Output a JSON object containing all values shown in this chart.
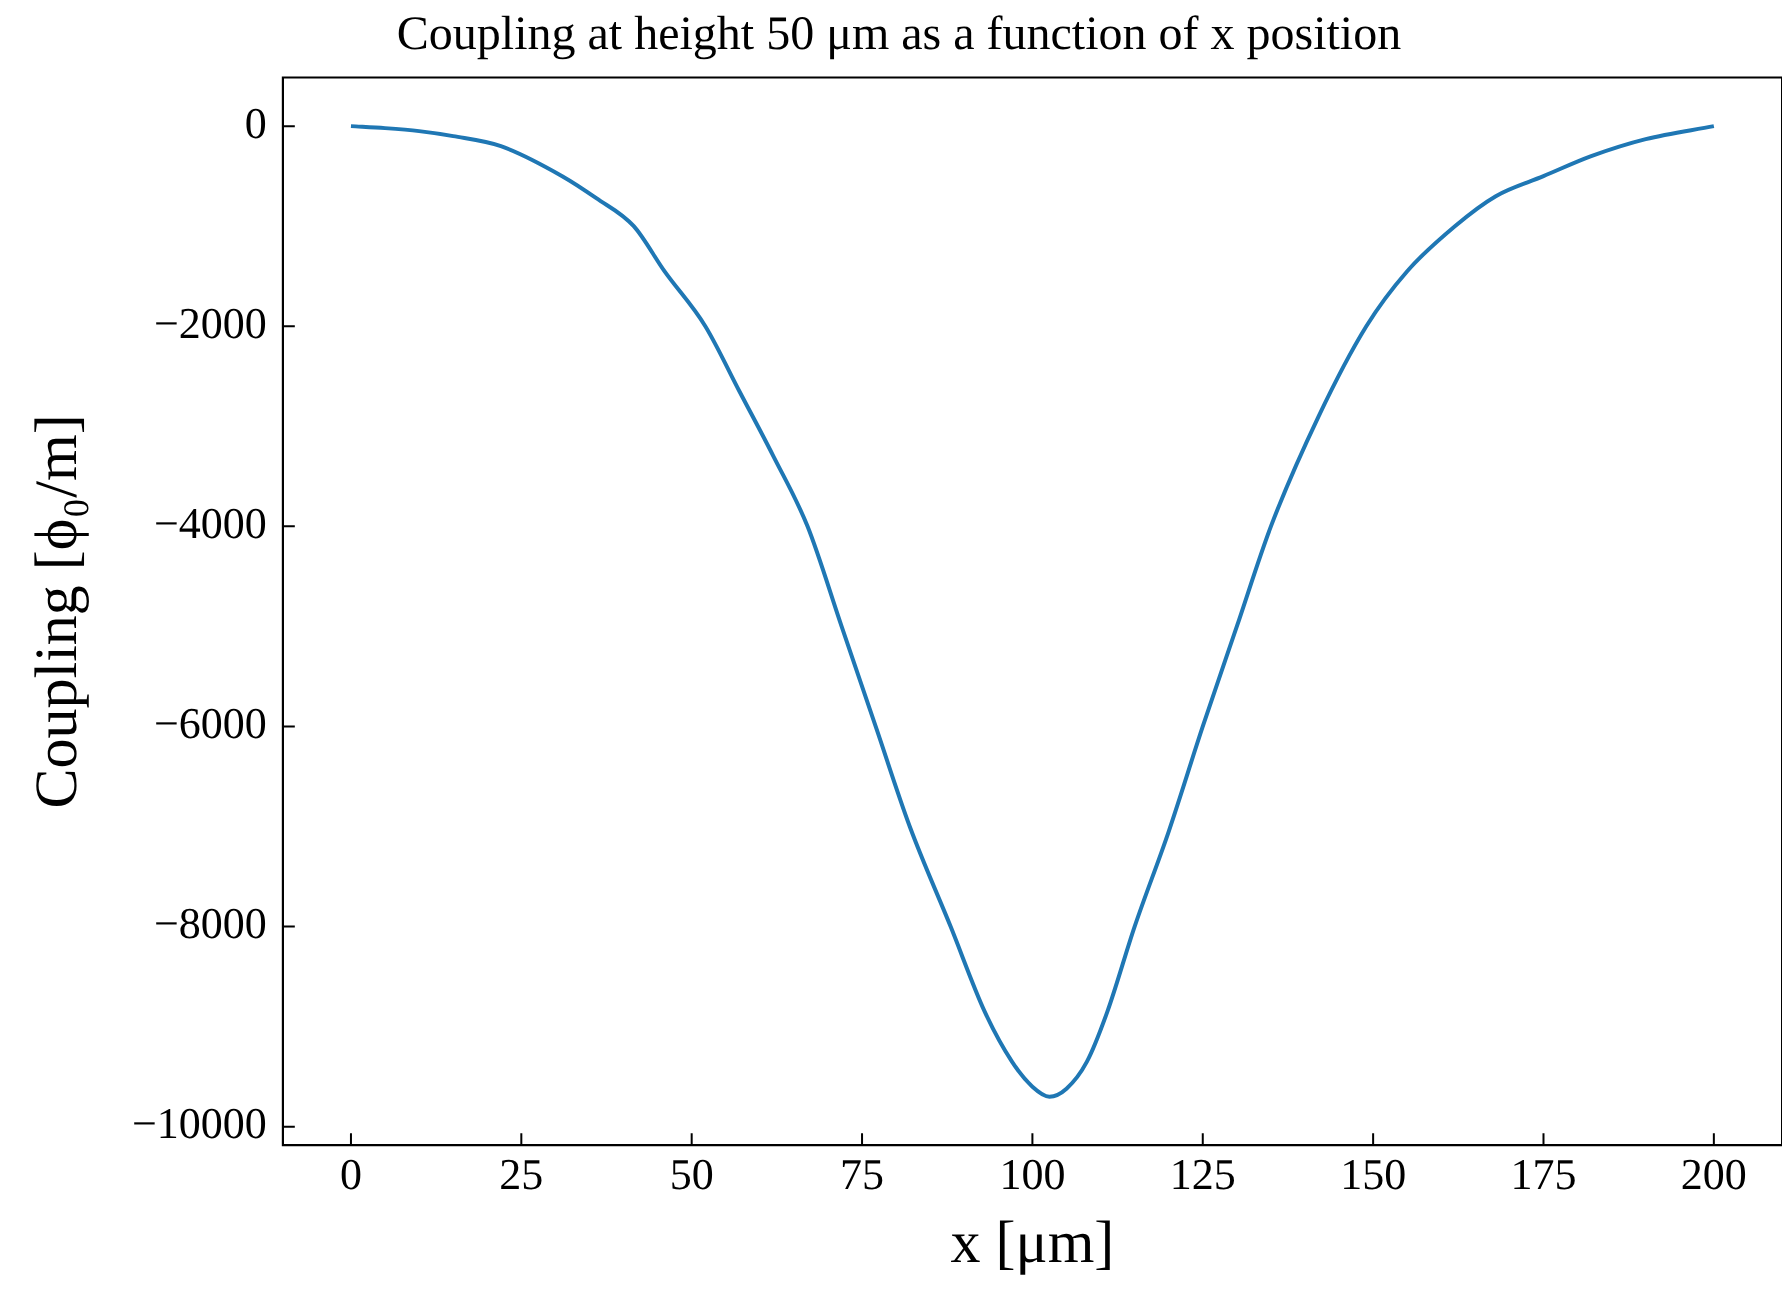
{
  "chart_data": {
    "type": "line",
    "title": "Coupling at height 50 μm as a function of x position",
    "xlabel": "x [μm]",
    "ylabel": "Coupling [ϕ₀/m]",
    "series": [
      {
        "color": "#1f77b4",
        "x": [
          0,
          5,
          10,
          15,
          22,
          31,
          36,
          41.5,
          46,
          52,
          57,
          62,
          67,
          72,
          77,
          82,
          88,
          93,
          97,
          100,
          102.5,
          105,
          108,
          111,
          115,
          120,
          125,
          130,
          135,
          142,
          149,
          155,
          162,
          168,
          175,
          182,
          190,
          200
        ],
        "values": [
          0,
          -20,
          -50,
          -100,
          -200,
          -500,
          -720,
          -1000,
          -1450,
          -2000,
          -2650,
          -3300,
          -4000,
          -5000,
          -6000,
          -7000,
          -8000,
          -8850,
          -9350,
          -9600,
          -9700,
          -9620,
          -9350,
          -8850,
          -8000,
          -7050,
          -6000,
          -5000,
          -4000,
          -2900,
          -2000,
          -1450,
          -1000,
          -700,
          -500,
          -300,
          -130,
          0
        ]
      }
    ],
    "xlim": [
      -10,
      210
    ],
    "ylim": [
      -10185,
      485
    ],
    "xticks": [
      0,
      25,
      50,
      75,
      100,
      125,
      150,
      175,
      200
    ],
    "yticks": [
      -10000,
      -8000,
      -6000,
      -4000,
      -2000,
      0
    ],
    "grid": false,
    "legend": false,
    "marker": "none",
    "line_style": "solid"
  }
}
